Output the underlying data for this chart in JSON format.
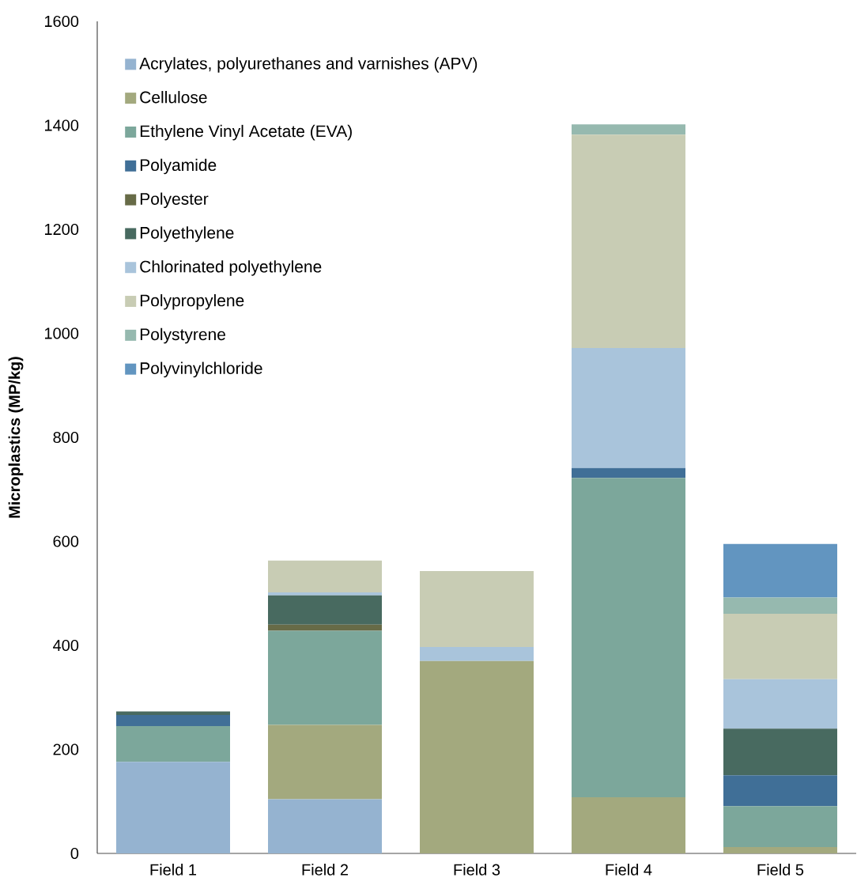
{
  "chart_data": {
    "type": "bar",
    "stacked": true,
    "ylabel": "Microplastics (MP/kg)",
    "categories": [
      "Field 1",
      "Field 2",
      "Field 3",
      "Field 4",
      "Field 5"
    ],
    "ylim": [
      0,
      1600
    ],
    "yticks": [
      0,
      200,
      400,
      600,
      800,
      1000,
      1200,
      1400,
      1600
    ],
    "grid": false,
    "legend": "top left",
    "series": [
      {
        "name": "Acrylates, polyurethanes and varnishes (APV)",
        "color": "#95b3d0",
        "values": [
          176,
          104,
          0,
          0,
          0
        ]
      },
      {
        "name": "Cellulose",
        "color": "#a3a97e",
        "values": [
          0,
          143,
          370,
          108,
          12
        ]
      },
      {
        "name": "Ethylene Vinyl Acetate (EVA)",
        "color": "#7ca79b",
        "values": [
          69,
          181,
          0,
          614,
          79
        ]
      },
      {
        "name": "Polyamide",
        "color": "#406f97",
        "values": [
          21,
          0,
          0,
          19,
          59
        ]
      },
      {
        "name": "Polyester",
        "color": "#676b47",
        "values": [
          0,
          12,
          0,
          0,
          0
        ]
      },
      {
        "name": "Polyethylene",
        "color": "#486a60",
        "values": [
          7,
          56,
          0,
          0,
          90
        ]
      },
      {
        "name": "Chlorinated polyethylene",
        "color": "#a9c4db",
        "values": [
          0,
          6,
          27,
          231,
          95
        ]
      },
      {
        "name": "Polypropylene",
        "color": "#c8ccb4",
        "values": [
          0,
          61,
          146,
          410,
          126
        ]
      },
      {
        "name": "Polystyrene",
        "color": "#96b9af",
        "values": [
          0,
          0,
          0,
          20,
          31
        ]
      },
      {
        "name": "Polyvinylchloride",
        "color": "#6295c0",
        "values": [
          0,
          0,
          0,
          0,
          103
        ]
      }
    ]
  }
}
